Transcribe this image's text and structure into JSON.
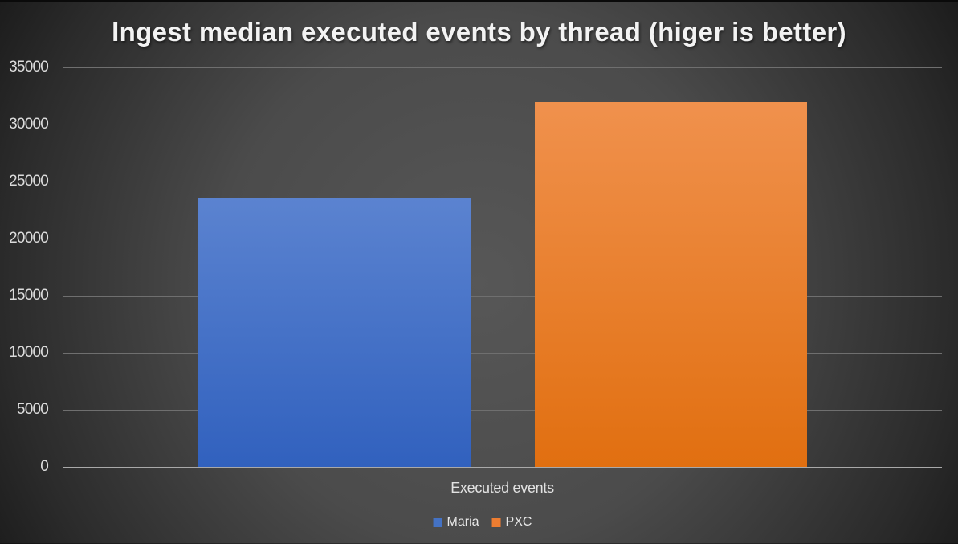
{
  "chart_data": {
    "type": "bar",
    "title": "Ingest median executed events by thread (higer is better)",
    "categories": [
      "Executed events"
    ],
    "series": [
      {
        "name": "Maria",
        "values": [
          23600
        ],
        "color": "#4472c4",
        "gradient_top": "#5b83d0",
        "gradient_bottom": "#3161be"
      },
      {
        "name": "PXC",
        "values": [
          32000
        ],
        "color": "#ed7d31",
        "gradient_top": "#f0914d",
        "gradient_bottom": "#e16f10"
      }
    ],
    "xlabel": "Executed events",
    "ylabel": "",
    "ylim": [
      0,
      35000
    ],
    "ytick_step": 5000,
    "yticks": [
      "0",
      "5000",
      "10000",
      "15000",
      "20000",
      "25000",
      "30000",
      "35000"
    ],
    "grid": true,
    "legend_position": "bottom",
    "colors": {
      "background_center": "#575757",
      "background_edge": "#1f1f1f",
      "text": "#dcdcdc",
      "gridline": "#6e6e6e",
      "axis_line": "#a9a9a9"
    }
  }
}
